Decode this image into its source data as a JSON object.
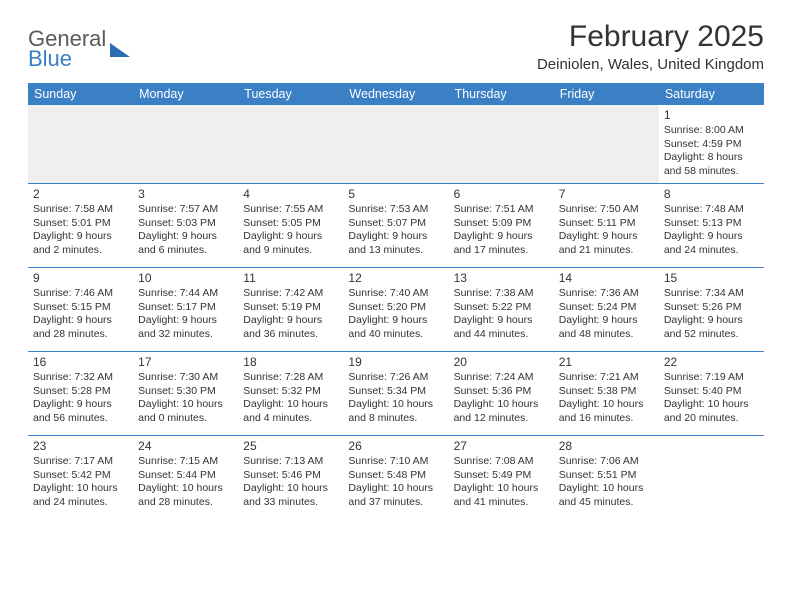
{
  "logo": {
    "line1": "General",
    "line2": "Blue"
  },
  "header": {
    "title": "February 2025",
    "location": "Deiniolen, Wales, United Kingdom"
  },
  "colors": {
    "header_bg": "#3b7fc4",
    "header_text": "#ffffff",
    "divider": "#3b7fc4",
    "body_text": "#333333",
    "empty_row_bg": "#efefef"
  },
  "weekdays": [
    "Sunday",
    "Monday",
    "Tuesday",
    "Wednesday",
    "Thursday",
    "Friday",
    "Saturday"
  ],
  "weeks": [
    [
      null,
      null,
      null,
      null,
      null,
      null,
      {
        "d": "1",
        "sr": "Sunrise: 8:00 AM",
        "ss": "Sunset: 4:59 PM",
        "dl1": "Daylight: 8 hours",
        "dl2": "and 58 minutes."
      }
    ],
    [
      {
        "d": "2",
        "sr": "Sunrise: 7:58 AM",
        "ss": "Sunset: 5:01 PM",
        "dl1": "Daylight: 9 hours",
        "dl2": "and 2 minutes."
      },
      {
        "d": "3",
        "sr": "Sunrise: 7:57 AM",
        "ss": "Sunset: 5:03 PM",
        "dl1": "Daylight: 9 hours",
        "dl2": "and 6 minutes."
      },
      {
        "d": "4",
        "sr": "Sunrise: 7:55 AM",
        "ss": "Sunset: 5:05 PM",
        "dl1": "Daylight: 9 hours",
        "dl2": "and 9 minutes."
      },
      {
        "d": "5",
        "sr": "Sunrise: 7:53 AM",
        "ss": "Sunset: 5:07 PM",
        "dl1": "Daylight: 9 hours",
        "dl2": "and 13 minutes."
      },
      {
        "d": "6",
        "sr": "Sunrise: 7:51 AM",
        "ss": "Sunset: 5:09 PM",
        "dl1": "Daylight: 9 hours",
        "dl2": "and 17 minutes."
      },
      {
        "d": "7",
        "sr": "Sunrise: 7:50 AM",
        "ss": "Sunset: 5:11 PM",
        "dl1": "Daylight: 9 hours",
        "dl2": "and 21 minutes."
      },
      {
        "d": "8",
        "sr": "Sunrise: 7:48 AM",
        "ss": "Sunset: 5:13 PM",
        "dl1": "Daylight: 9 hours",
        "dl2": "and 24 minutes."
      }
    ],
    [
      {
        "d": "9",
        "sr": "Sunrise: 7:46 AM",
        "ss": "Sunset: 5:15 PM",
        "dl1": "Daylight: 9 hours",
        "dl2": "and 28 minutes."
      },
      {
        "d": "10",
        "sr": "Sunrise: 7:44 AM",
        "ss": "Sunset: 5:17 PM",
        "dl1": "Daylight: 9 hours",
        "dl2": "and 32 minutes."
      },
      {
        "d": "11",
        "sr": "Sunrise: 7:42 AM",
        "ss": "Sunset: 5:19 PM",
        "dl1": "Daylight: 9 hours",
        "dl2": "and 36 minutes."
      },
      {
        "d": "12",
        "sr": "Sunrise: 7:40 AM",
        "ss": "Sunset: 5:20 PM",
        "dl1": "Daylight: 9 hours",
        "dl2": "and 40 minutes."
      },
      {
        "d": "13",
        "sr": "Sunrise: 7:38 AM",
        "ss": "Sunset: 5:22 PM",
        "dl1": "Daylight: 9 hours",
        "dl2": "and 44 minutes."
      },
      {
        "d": "14",
        "sr": "Sunrise: 7:36 AM",
        "ss": "Sunset: 5:24 PM",
        "dl1": "Daylight: 9 hours",
        "dl2": "and 48 minutes."
      },
      {
        "d": "15",
        "sr": "Sunrise: 7:34 AM",
        "ss": "Sunset: 5:26 PM",
        "dl1": "Daylight: 9 hours",
        "dl2": "and 52 minutes."
      }
    ],
    [
      {
        "d": "16",
        "sr": "Sunrise: 7:32 AM",
        "ss": "Sunset: 5:28 PM",
        "dl1": "Daylight: 9 hours",
        "dl2": "and 56 minutes."
      },
      {
        "d": "17",
        "sr": "Sunrise: 7:30 AM",
        "ss": "Sunset: 5:30 PM",
        "dl1": "Daylight: 10 hours",
        "dl2": "and 0 minutes."
      },
      {
        "d": "18",
        "sr": "Sunrise: 7:28 AM",
        "ss": "Sunset: 5:32 PM",
        "dl1": "Daylight: 10 hours",
        "dl2": "and 4 minutes."
      },
      {
        "d": "19",
        "sr": "Sunrise: 7:26 AM",
        "ss": "Sunset: 5:34 PM",
        "dl1": "Daylight: 10 hours",
        "dl2": "and 8 minutes."
      },
      {
        "d": "20",
        "sr": "Sunrise: 7:24 AM",
        "ss": "Sunset: 5:36 PM",
        "dl1": "Daylight: 10 hours",
        "dl2": "and 12 minutes."
      },
      {
        "d": "21",
        "sr": "Sunrise: 7:21 AM",
        "ss": "Sunset: 5:38 PM",
        "dl1": "Daylight: 10 hours",
        "dl2": "and 16 minutes."
      },
      {
        "d": "22",
        "sr": "Sunrise: 7:19 AM",
        "ss": "Sunset: 5:40 PM",
        "dl1": "Daylight: 10 hours",
        "dl2": "and 20 minutes."
      }
    ],
    [
      {
        "d": "23",
        "sr": "Sunrise: 7:17 AM",
        "ss": "Sunset: 5:42 PM",
        "dl1": "Daylight: 10 hours",
        "dl2": "and 24 minutes."
      },
      {
        "d": "24",
        "sr": "Sunrise: 7:15 AM",
        "ss": "Sunset: 5:44 PM",
        "dl1": "Daylight: 10 hours",
        "dl2": "and 28 minutes."
      },
      {
        "d": "25",
        "sr": "Sunrise: 7:13 AM",
        "ss": "Sunset: 5:46 PM",
        "dl1": "Daylight: 10 hours",
        "dl2": "and 33 minutes."
      },
      {
        "d": "26",
        "sr": "Sunrise: 7:10 AM",
        "ss": "Sunset: 5:48 PM",
        "dl1": "Daylight: 10 hours",
        "dl2": "and 37 minutes."
      },
      {
        "d": "27",
        "sr": "Sunrise: 7:08 AM",
        "ss": "Sunset: 5:49 PM",
        "dl1": "Daylight: 10 hours",
        "dl2": "and 41 minutes."
      },
      {
        "d": "28",
        "sr": "Sunrise: 7:06 AM",
        "ss": "Sunset: 5:51 PM",
        "dl1": "Daylight: 10 hours",
        "dl2": "and 45 minutes."
      },
      null
    ]
  ]
}
